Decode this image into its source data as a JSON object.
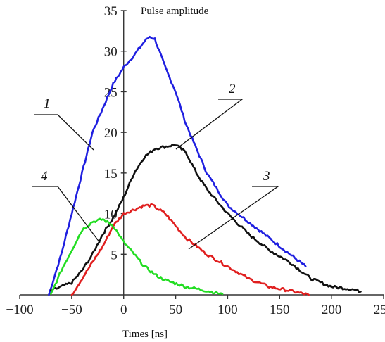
{
  "chart_data": {
    "type": "line",
    "title": "Pulse amplitude",
    "xlabel": "Times [ns]",
    "ylabel": "",
    "xlim": [
      -100,
      250
    ],
    "ylim": [
      0,
      35
    ],
    "xticks": [
      "−100",
      "−50",
      "0",
      "50",
      "100",
      "150",
      "200",
      "250"
    ],
    "yticks": [
      "5",
      "10",
      "15",
      "20",
      "25",
      "30",
      "35"
    ],
    "grid": false,
    "series": [
      {
        "label": "1",
        "color": "#1f1fe0",
        "points": [
          [
            -72,
            0
          ],
          [
            -60,
            5
          ],
          [
            -50,
            10
          ],
          [
            -40,
            15
          ],
          [
            -30,
            20
          ],
          [
            -20,
            23
          ],
          [
            -10,
            26
          ],
          [
            0,
            28
          ],
          [
            10,
            29.5
          ],
          [
            20,
            31.2
          ],
          [
            25,
            31.8
          ],
          [
            30,
            31.5
          ],
          [
            40,
            28
          ],
          [
            50,
            25
          ],
          [
            60,
            21
          ],
          [
            70,
            18
          ],
          [
            80,
            15
          ],
          [
            100,
            11
          ],
          [
            120,
            9
          ],
          [
            140,
            7
          ],
          [
            160,
            5
          ],
          [
            175,
            3.5
          ]
        ]
      },
      {
        "label": "2",
        "color": "#111111",
        "points": [
          [
            -70,
            0.5
          ],
          [
            -60,
            1
          ],
          [
            -50,
            1.5
          ],
          [
            -40,
            3
          ],
          [
            -30,
            5
          ],
          [
            -20,
            7.5
          ],
          [
            -10,
            9.5
          ],
          [
            0,
            12
          ],
          [
            10,
            15
          ],
          [
            20,
            17
          ],
          [
            30,
            18
          ],
          [
            50,
            18.5
          ],
          [
            60,
            17.5
          ],
          [
            70,
            15
          ],
          [
            80,
            13
          ],
          [
            100,
            10
          ],
          [
            120,
            7.5
          ],
          [
            140,
            5.5
          ],
          [
            160,
            4
          ],
          [
            180,
            2
          ],
          [
            200,
            1
          ],
          [
            220,
            0.7
          ],
          [
            228,
            0.4
          ]
        ]
      },
      {
        "label": "3",
        "color": "#e01f1f",
        "points": [
          [
            -50,
            0
          ],
          [
            -40,
            2
          ],
          [
            -30,
            4
          ],
          [
            -20,
            6
          ],
          [
            -10,
            8.5
          ],
          [
            0,
            10
          ],
          [
            10,
            10.5
          ],
          [
            20,
            11
          ],
          [
            28,
            11
          ],
          [
            40,
            10
          ],
          [
            50,
            8.5
          ],
          [
            60,
            7
          ],
          [
            80,
            5
          ],
          [
            100,
            3.5
          ],
          [
            120,
            2
          ],
          [
            140,
            1
          ],
          [
            160,
            0.5
          ],
          [
            178,
            0
          ]
        ]
      },
      {
        "label": "4",
        "color": "#22dd22",
        "points": [
          [
            -70,
            0
          ],
          [
            -60,
            3
          ],
          [
            -50,
            5.5
          ],
          [
            -40,
            8
          ],
          [
            -30,
            9
          ],
          [
            -20,
            9.3
          ],
          [
            -10,
            8.5
          ],
          [
            0,
            6.5
          ],
          [
            10,
            5
          ],
          [
            20,
            3.5
          ],
          [
            30,
            2.5
          ],
          [
            40,
            1.8
          ],
          [
            60,
            1
          ],
          [
            80,
            0.5
          ],
          [
            95,
            0.1
          ]
        ]
      }
    ]
  }
}
